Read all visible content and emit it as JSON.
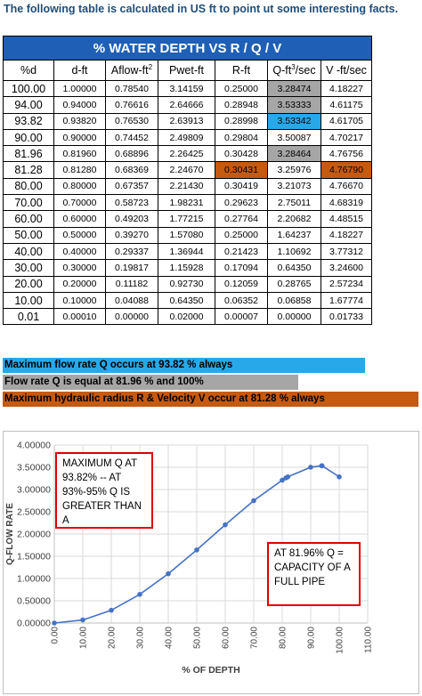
{
  "intro": "The following table is calculated in US ft to point ut some interesting facts.",
  "table": {
    "title": "% WATER DEPTH VS R / Q / V",
    "headers": [
      "%d",
      "d-ft",
      "Aflow-ft",
      "Pwet-ft",
      "R-ft",
      "Q-ft",
      "V -ft/sec"
    ],
    "header_sup": {
      "aflow": "2",
      "q": "3",
      "q_suffix": "/sec"
    },
    "rows": [
      [
        "100.00",
        "1.00000",
        "0.78540",
        "3.14159",
        "0.25000",
        "3.28474",
        "4.18227"
      ],
      [
        "94.00",
        "0.94000",
        "0.76616",
        "2.64666",
        "0.28948",
        "3.53333",
        "4.61175"
      ],
      [
        "93.82",
        "0.93820",
        "0.76530",
        "2.63913",
        "0.28998",
        "3.53342",
        "4.61705"
      ],
      [
        "90.00",
        "0.90000",
        "0.74452",
        "2.49809",
        "0.29804",
        "3.50087",
        "4.70217"
      ],
      [
        "81.96",
        "0.81960",
        "0.68896",
        "2.26425",
        "0.30428",
        "3.28464",
        "4.76756"
      ],
      [
        "81.28",
        "0.81280",
        "0.68369",
        "2.24670",
        "0.30431",
        "3.25976",
        "4.76790"
      ],
      [
        "80.00",
        "0.80000",
        "0.67357",
        "2.21430",
        "0.30419",
        "3.21073",
        "4.76670"
      ],
      [
        "70.00",
        "0.70000",
        "0.58723",
        "1.98231",
        "0.29623",
        "2.75011",
        "4.68319"
      ],
      [
        "60.00",
        "0.60000",
        "0.49203",
        "1.77215",
        "0.27764",
        "2.20682",
        "4.48515"
      ],
      [
        "50.00",
        "0.50000",
        "0.39270",
        "1.57080",
        "0.25000",
        "1.64237",
        "4.18227"
      ],
      [
        "40.00",
        "0.40000",
        "0.29337",
        "1.36944",
        "0.21423",
        "1.10692",
        "3.77312"
      ],
      [
        "30.00",
        "0.30000",
        "0.19817",
        "1.15928",
        "0.17094",
        "0.64350",
        "3.24600"
      ],
      [
        "20.00",
        "0.20000",
        "0.11182",
        "0.92730",
        "0.12059",
        "0.28765",
        "2.57234"
      ],
      [
        "10.00",
        "0.10000",
        "0.04088",
        "0.64350",
        "0.06352",
        "0.06858",
        "1.67774"
      ],
      [
        "0.01",
        "0.00010",
        "0.00000",
        "0.02000",
        "0.00007",
        "0.00000",
        "0.01733"
      ]
    ],
    "highlights": {
      "grey": "#a6a6a6",
      "blue": "#28a8e8",
      "orange": "#c55a11",
      "title_bg": "#1f5fb5"
    }
  },
  "banners": [
    {
      "text": "Maximum flow rate Q occurs at 93.82 % always",
      "color": "#28a8e8"
    },
    {
      "text": "Flow rate Q is equal at 81.96 % and 100%",
      "color": "#a6a6a6"
    },
    {
      "text": "Maximum hydraulic radius R & Velocity V occur at 81.28 % always",
      "color": "#c55a11"
    }
  ],
  "chart_data": {
    "type": "scatter",
    "title": "",
    "xlabel": "% OF DEPTH",
    "ylabel": "Q-FLOW RATE",
    "xlim": [
      0,
      110
    ],
    "ylim": [
      0,
      4
    ],
    "x_ticks": [
      "0.00",
      "10.00",
      "20.00",
      "30.00",
      "40.00",
      "50.00",
      "60.00",
      "70.00",
      "80.00",
      "90.00",
      "100.00",
      "110.00"
    ],
    "y_ticks": [
      "0.00000",
      "0.50000",
      "1.00000",
      "1.50000",
      "2.00000",
      "2.50000",
      "3.00000",
      "3.50000",
      "4.00000"
    ],
    "line_color": "#4472c4",
    "x": [
      0.01,
      10,
      20,
      30,
      40,
      50,
      60,
      70,
      80,
      81.28,
      81.96,
      90,
      93.82,
      94,
      100
    ],
    "y": [
      0.0,
      0.06858,
      0.28765,
      0.6435,
      1.10692,
      1.64237,
      2.20682,
      2.75011,
      3.21073,
      3.25976,
      3.28464,
      3.50087,
      3.53342,
      3.53333,
      3.28474
    ],
    "annotations": [
      {
        "text": "MAXIMUM Q AT 93.82% -- AT 93%-95% Q IS GREATER THAN A"
      },
      {
        "text": "AT 81.96% Q = CAPACITY OF A FULL PIPE"
      }
    ]
  }
}
